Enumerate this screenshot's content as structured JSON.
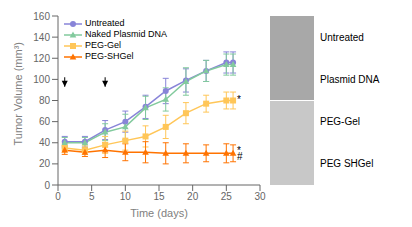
{
  "chart_data": {
    "type": "line",
    "x_label": "Time (days)",
    "y_label": "Tumor Volume (mm³)",
    "x": [
      1,
      4,
      7,
      10,
      13,
      16,
      19,
      22,
      25,
      26
    ],
    "series": [
      {
        "name": "Untreated",
        "marker": "circle",
        "line_style": "solid",
        "values": [
          41,
          41,
          52,
          60,
          74,
          89,
          99,
          108,
          116,
          116
        ],
        "errors": [
          5,
          5,
          9,
          10,
          11,
          12,
          11,
          10,
          10,
          10
        ]
      },
      {
        "name": "Naked Plasmid DNA",
        "marker": "triangle",
        "line_style": "solid",
        "values": [
          40,
          40,
          50,
          55,
          73,
          81,
          98,
          108,
          114,
          114
        ],
        "errors": [
          5,
          5,
          8,
          12,
          11,
          11,
          13,
          10,
          10,
          10
        ]
      },
      {
        "name": "PEG-Gel",
        "marker": "square",
        "line_style": "solid",
        "values": [
          35,
          33,
          38,
          42,
          46,
          55,
          68,
          77,
          80,
          80
        ],
        "errors": [
          4,
          4,
          8,
          9,
          10,
          11,
          10,
          8,
          8,
          8
        ]
      },
      {
        "name": "PEG-SHGel",
        "marker": "triangle",
        "line_style": "solid",
        "values": [
          33,
          31,
          33,
          31,
          31,
          30,
          30,
          30,
          30,
          30
        ],
        "errors": [
          4,
          4,
          7,
          8,
          10,
          10,
          9,
          8,
          9,
          8
        ]
      }
    ],
    "xlim": [
      0,
      30
    ],
    "ylim": [
      0,
      160
    ],
    "xticks": [
      0,
      5,
      10,
      15,
      20,
      25,
      30
    ],
    "yticks": [
      0,
      20,
      40,
      60,
      80,
      100,
      120,
      140,
      160
    ],
    "grid": false,
    "legend": "upper left",
    "arrows": [
      {
        "x": 1,
        "y_tail": 102,
        "y_tip": 93
      },
      {
        "x": 7,
        "y_tail": 102,
        "y_tip": 93
      }
    ],
    "annotations": [
      {
        "text": "*",
        "x": 26.6,
        "y": 81
      },
      {
        "text": "*",
        "x": 26.6,
        "y": 33
      },
      {
        "text": "#",
        "x": 26.6,
        "y": 27
      },
      {
        "text": "Untreated"
      },
      {
        "text": "Plasmid DNA"
      },
      {
        "text": "PEG-Gel"
      },
      {
        "text": "PEG SHGel"
      }
    ]
  }
}
